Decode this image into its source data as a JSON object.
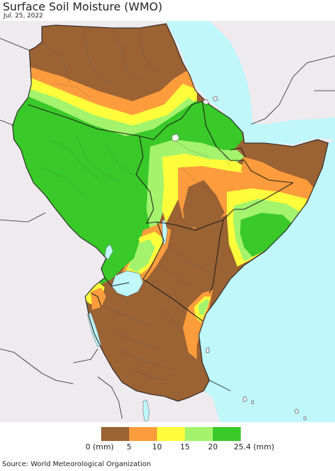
{
  "title": "Surface Soil Moisture (WMO)",
  "date": "Jul. 25, 2022",
  "source": "Source: World Meteorological Organization",
  "legend": {
    "bins": [
      {
        "from": 0,
        "to": 5,
        "color": "#9b6233"
      },
      {
        "from": 5,
        "to": 10,
        "color": "#fd9c3d"
      },
      {
        "from": 10,
        "to": 15,
        "color": "#fdfd3b"
      },
      {
        "from": 15,
        "to": 20,
        "color": "#a3f36d"
      },
      {
        "from": 20,
        "to": 25.4,
        "color": "#39c928"
      }
    ],
    "tick_labels": [
      "0 (mm)",
      "5",
      "10",
      "15",
      "20",
      "25.4 (mm)"
    ]
  },
  "colors": {
    "water": "#bff7fb",
    "outside_land": "#eeeaee",
    "border": "#222222",
    "lake": "#bff7fb"
  }
}
